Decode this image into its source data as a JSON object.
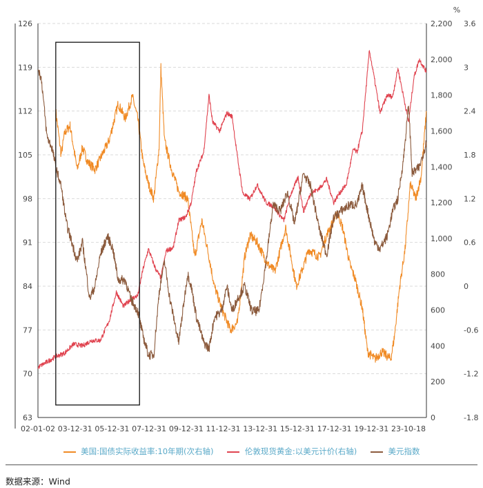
{
  "chart_data": {
    "type": "line",
    "right_unit_label": "%",
    "x_tick_labels": [
      "02-01-02",
      "03-12-31",
      "05-12-31",
      "07-12-31",
      "09-12-31",
      "11-12-31",
      "13-12-31",
      "15-12-31",
      "17-12-31",
      "19-12-31",
      "23-10-18"
    ],
    "axes": {
      "left": {
        "min": 63,
        "max": 126,
        "ticks": [
          126,
          119,
          112,
          105,
          98,
          91,
          84,
          77,
          70,
          63
        ]
      },
      "right1": {
        "min": 0,
        "max": 2200,
        "ticks": [
          "2,200",
          "2,000",
          "1,800",
          "1,600",
          "1,400",
          "1,200",
          "1,000",
          "800",
          "600",
          "400",
          "200",
          "0"
        ]
      },
      "right2": {
        "min": -1.8,
        "max": 3.6,
        "ticks": [
          3.6,
          3,
          2.4,
          1.8,
          1.2,
          0.6,
          0,
          -0.6,
          -1.2,
          -1.8
        ]
      }
    },
    "series": [
      {
        "name": "美国:国债实际收益率:10年期(次右轴)",
        "color": "#f08a24",
        "axis": "right2",
        "points": [
          [
            2003.0,
            2.4
          ],
          [
            2003.3,
            1.8
          ],
          [
            2003.5,
            2.1
          ],
          [
            2003.8,
            2.2
          ],
          [
            2004.2,
            1.6
          ],
          [
            2004.5,
            1.9
          ],
          [
            2004.8,
            1.7
          ],
          [
            2005.2,
            1.6
          ],
          [
            2005.6,
            1.8
          ],
          [
            2006.0,
            2.0
          ],
          [
            2006.5,
            2.5
          ],
          [
            2006.9,
            2.3
          ],
          [
            2007.3,
            2.6
          ],
          [
            2007.6,
            2.3
          ],
          [
            2007.9,
            1.7
          ],
          [
            2008.2,
            1.4
          ],
          [
            2008.5,
            1.2
          ],
          [
            2008.8,
            1.9
          ],
          [
            2008.9,
            3.0
          ],
          [
            2009.1,
            2.0
          ],
          [
            2009.5,
            1.6
          ],
          [
            2009.9,
            1.3
          ],
          [
            2010.4,
            1.2
          ],
          [
            2010.8,
            0.4
          ],
          [
            2011.2,
            0.9
          ],
          [
            2011.6,
            0.4
          ],
          [
            2011.9,
            0.0
          ],
          [
            2012.3,
            -0.3
          ],
          [
            2012.8,
            -0.6
          ],
          [
            2013.2,
            -0.5
          ],
          [
            2013.6,
            0.4
          ],
          [
            2013.9,
            0.7
          ],
          [
            2014.3,
            0.6
          ],
          [
            2014.9,
            0.3
          ],
          [
            2015.3,
            0.2
          ],
          [
            2015.7,
            0.6
          ],
          [
            2015.9,
            0.8
          ],
          [
            2016.2,
            0.4
          ],
          [
            2016.5,
            0.0
          ],
          [
            2016.8,
            0.2
          ],
          [
            2017.2,
            0.5
          ],
          [
            2017.8,
            0.4
          ],
          [
            2018.2,
            0.7
          ],
          [
            2018.8,
            1.0
          ],
          [
            2019.1,
            0.8
          ],
          [
            2019.5,
            0.3
          ],
          [
            2019.8,
            0.1
          ],
          [
            2020.2,
            -0.3
          ],
          [
            2020.5,
            -0.9
          ],
          [
            2020.9,
            -1.0
          ],
          [
            2021.3,
            -0.9
          ],
          [
            2021.8,
            -1.0
          ],
          [
            2022.0,
            -0.7
          ],
          [
            2022.3,
            0.0
          ],
          [
            2022.6,
            0.5
          ],
          [
            2022.9,
            1.4
          ],
          [
            2023.2,
            1.2
          ],
          [
            2023.5,
            1.5
          ],
          [
            2023.8,
            2.4
          ]
        ]
      },
      {
        "name": "伦敦现货黄金:以美元计价(右轴)",
        "color": "#e0434f",
        "axis": "right1",
        "points": [
          [
            2002.0,
            280
          ],
          [
            2002.5,
            310
          ],
          [
            2003.0,
            340
          ],
          [
            2003.5,
            360
          ],
          [
            2004.0,
            410
          ],
          [
            2004.5,
            400
          ],
          [
            2005.0,
            430
          ],
          [
            2005.5,
            430
          ],
          [
            2006.0,
            540
          ],
          [
            2006.4,
            700
          ],
          [
            2006.8,
            620
          ],
          [
            2007.2,
            660
          ],
          [
            2007.6,
            680
          ],
          [
            2007.9,
            830
          ],
          [
            2008.2,
            940
          ],
          [
            2008.6,
            830
          ],
          [
            2008.9,
            780
          ],
          [
            2009.2,
            930
          ],
          [
            2009.6,
            950
          ],
          [
            2009.9,
            1100
          ],
          [
            2010.3,
            1120
          ],
          [
            2010.6,
            1200
          ],
          [
            2010.9,
            1380
          ],
          [
            2011.3,
            1480
          ],
          [
            2011.6,
            1800
          ],
          [
            2011.8,
            1650
          ],
          [
            2012.2,
            1600
          ],
          [
            2012.6,
            1700
          ],
          [
            2012.9,
            1680
          ],
          [
            2013.2,
            1450
          ],
          [
            2013.5,
            1250
          ],
          [
            2013.9,
            1220
          ],
          [
            2014.3,
            1300
          ],
          [
            2014.8,
            1200
          ],
          [
            2015.2,
            1180
          ],
          [
            2015.8,
            1100
          ],
          [
            2016.2,
            1250
          ],
          [
            2016.6,
            1340
          ],
          [
            2016.9,
            1150
          ],
          [
            2017.3,
            1250
          ],
          [
            2017.8,
            1280
          ],
          [
            2018.2,
            1330
          ],
          [
            2018.6,
            1200
          ],
          [
            2018.9,
            1250
          ],
          [
            2019.3,
            1300
          ],
          [
            2019.7,
            1500
          ],
          [
            2019.9,
            1480
          ],
          [
            2020.2,
            1600
          ],
          [
            2020.6,
            2050
          ],
          [
            2020.9,
            1880
          ],
          [
            2021.2,
            1700
          ],
          [
            2021.6,
            1800
          ],
          [
            2021.9,
            1790
          ],
          [
            2022.2,
            1950
          ],
          [
            2022.5,
            1800
          ],
          [
            2022.8,
            1650
          ],
          [
            2023.1,
            1900
          ],
          [
            2023.4,
            2000
          ],
          [
            2023.8,
            1930
          ]
        ]
      },
      {
        "name": "美元指数",
        "color": "#8b5a3c",
        "axis": "left",
        "points": [
          [
            2002.0,
            119
          ],
          [
            2002.2,
            117
          ],
          [
            2002.5,
            108
          ],
          [
            2002.8,
            106
          ],
          [
            2003.0,
            103
          ],
          [
            2003.3,
            100
          ],
          [
            2003.6,
            94
          ],
          [
            2003.9,
            91
          ],
          [
            2004.2,
            88
          ],
          [
            2004.5,
            91
          ],
          [
            2004.9,
            82
          ],
          [
            2005.2,
            84
          ],
          [
            2005.5,
            89
          ],
          [
            2005.9,
            92
          ],
          [
            2006.2,
            90
          ],
          [
            2006.5,
            85
          ],
          [
            2006.9,
            85
          ],
          [
            2007.2,
            82
          ],
          [
            2007.6,
            80
          ],
          [
            2007.9,
            76
          ],
          [
            2008.2,
            73
          ],
          [
            2008.5,
            73
          ],
          [
            2008.8,
            83
          ],
          [
            2009.1,
            88
          ],
          [
            2009.4,
            82
          ],
          [
            2009.9,
            75
          ],
          [
            2010.4,
            86
          ],
          [
            2010.6,
            84
          ],
          [
            2010.9,
            79
          ],
          [
            2011.3,
            75
          ],
          [
            2011.6,
            74
          ],
          [
            2011.9,
            79
          ],
          [
            2012.3,
            80
          ],
          [
            2012.6,
            84
          ],
          [
            2012.9,
            80
          ],
          [
            2013.2,
            82
          ],
          [
            2013.6,
            84
          ],
          [
            2014.0,
            80
          ],
          [
            2014.4,
            80
          ],
          [
            2014.8,
            88
          ],
          [
            2015.2,
            97
          ],
          [
            2015.6,
            96
          ],
          [
            2016.0,
            99
          ],
          [
            2016.4,
            94
          ],
          [
            2016.9,
            102
          ],
          [
            2017.3,
            100
          ],
          [
            2017.8,
            93
          ],
          [
            2018.2,
            89
          ],
          [
            2018.6,
            95
          ],
          [
            2019.0,
            96
          ],
          [
            2019.5,
            97
          ],
          [
            2019.9,
            97
          ],
          [
            2020.2,
            100
          ],
          [
            2020.5,
            96
          ],
          [
            2020.9,
            91
          ],
          [
            2021.2,
            90
          ],
          [
            2021.6,
            92
          ],
          [
            2021.9,
            96
          ],
          [
            2022.2,
            98
          ],
          [
            2022.5,
            104
          ],
          [
            2022.8,
            113
          ],
          [
            2023.0,
            102
          ],
          [
            2023.4,
            103
          ],
          [
            2023.8,
            107
          ]
        ]
      }
    ],
    "highlight_box": {
      "x_start": 2003.0,
      "x_end": 2007.7,
      "y_top": 123,
      "y_bottom": 65
    }
  },
  "legend": {
    "items": [
      {
        "label": "美国:国债实际收益率:10年期(次右轴)",
        "color": "#f08a24"
      },
      {
        "label": "伦敦现货黄金:以美元计价(右轴)",
        "color": "#e0434f"
      },
      {
        "label": "美元指数",
        "color": "#8b5a3c"
      }
    ]
  },
  "source": "数据来源：Wind"
}
